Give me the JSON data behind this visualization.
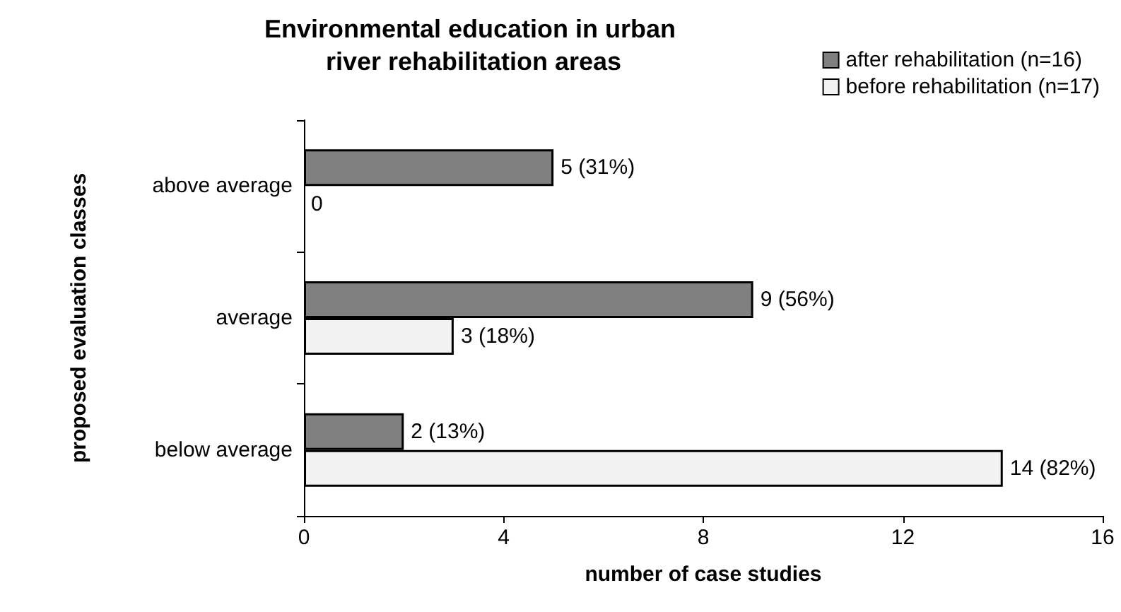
{
  "chart_data": {
    "type": "bar",
    "orientation": "horizontal",
    "title": "Environmental education in urban river rehabilitation areas",
    "xlabel": "number of case studies",
    "ylabel": "proposed evaluation classes",
    "categories": [
      "above average",
      "average",
      "below average"
    ],
    "series": [
      {
        "name": "after rehabilitation (n=16)",
        "color": "#808080",
        "values": [
          5,
          9,
          2
        ],
        "value_labels": [
          "5 (31%)",
          "9 (56%)",
          "2 (13%)"
        ]
      },
      {
        "name": "before rehabilitation (n=17)",
        "color": "#f2f2f2",
        "values": [
          0,
          3,
          14
        ],
        "value_labels": [
          "0",
          "3 (18%)",
          "14 (82%)"
        ]
      }
    ],
    "xlim": [
      0,
      16
    ],
    "xticks": [
      0,
      4,
      8,
      12,
      16
    ],
    "grid": false,
    "legend": "top right"
  }
}
